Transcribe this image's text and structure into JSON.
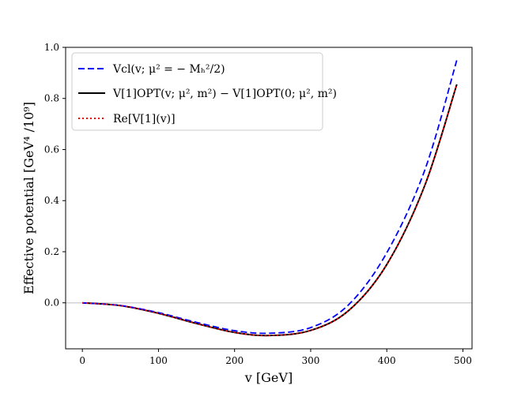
{
  "chart_data": {
    "type": "line",
    "title": "",
    "xlabel": "v [GeV]",
    "ylabel": "Effective potential [GeV⁴ /10⁹]",
    "xlim": [
      -22,
      512
    ],
    "ylim": [
      -0.18,
      1.0
    ],
    "xticks": [
      0,
      100,
      200,
      300,
      400,
      500
    ],
    "yticks": [
      0.0,
      0.2,
      0.4,
      0.6,
      0.8,
      1.0
    ],
    "xtick_labels": [
      "0",
      "100",
      "200",
      "300",
      "400",
      "500"
    ],
    "ytick_labels": [
      "0.0",
      "0.2",
      "0.4",
      "0.6",
      "0.8",
      "1.0"
    ],
    "grid": false,
    "legend_position": "upper-left",
    "reference_line": {
      "y": 0.0,
      "color": "#d3d3d3"
    },
    "series": [
      {
        "name": "V_cl(v; μ² = −M_h²/2)",
        "legend_label": "Vcl(v; μ² = − Mₕ²/2)",
        "color": "#0000ff",
        "style": "dashed",
        "x": [
          0,
          50,
          100,
          150,
          200,
          246,
          300,
          350,
          400,
          450,
          492
        ],
        "y": [
          0.0,
          -0.0105,
          -0.0385,
          -0.0765,
          -0.109,
          -0.119,
          -0.097,
          -0.007,
          0.196,
          0.52,
          0.95
        ]
      },
      {
        "name": "V_OPT^[1](v; μ², m²) − V_OPT^[1](0; μ², m²)",
        "legend_label": "V[1]OPT(v; μ², m²) − V[1]OPT(0; μ², m²)",
        "color": "#000000",
        "style": "solid",
        "x": [
          0,
          50,
          100,
          150,
          200,
          246,
          300,
          350,
          400,
          450,
          492
        ],
        "y": [
          0.0,
          -0.011,
          -0.041,
          -0.081,
          -0.116,
          -0.128,
          -0.108,
          -0.03,
          0.15,
          0.46,
          0.855
        ]
      },
      {
        "name": "Re[V^[1](v)]",
        "legend_label": "Re[V[1](v)]",
        "color": "#ff0000",
        "style": "dotted",
        "x": [
          0,
          50,
          100,
          150,
          200,
          246,
          300,
          350,
          400,
          450,
          492
        ],
        "y": [
          0.0,
          -0.011,
          -0.041,
          -0.081,
          -0.116,
          -0.128,
          -0.108,
          -0.03,
          0.15,
          0.46,
          0.855
        ]
      }
    ]
  }
}
